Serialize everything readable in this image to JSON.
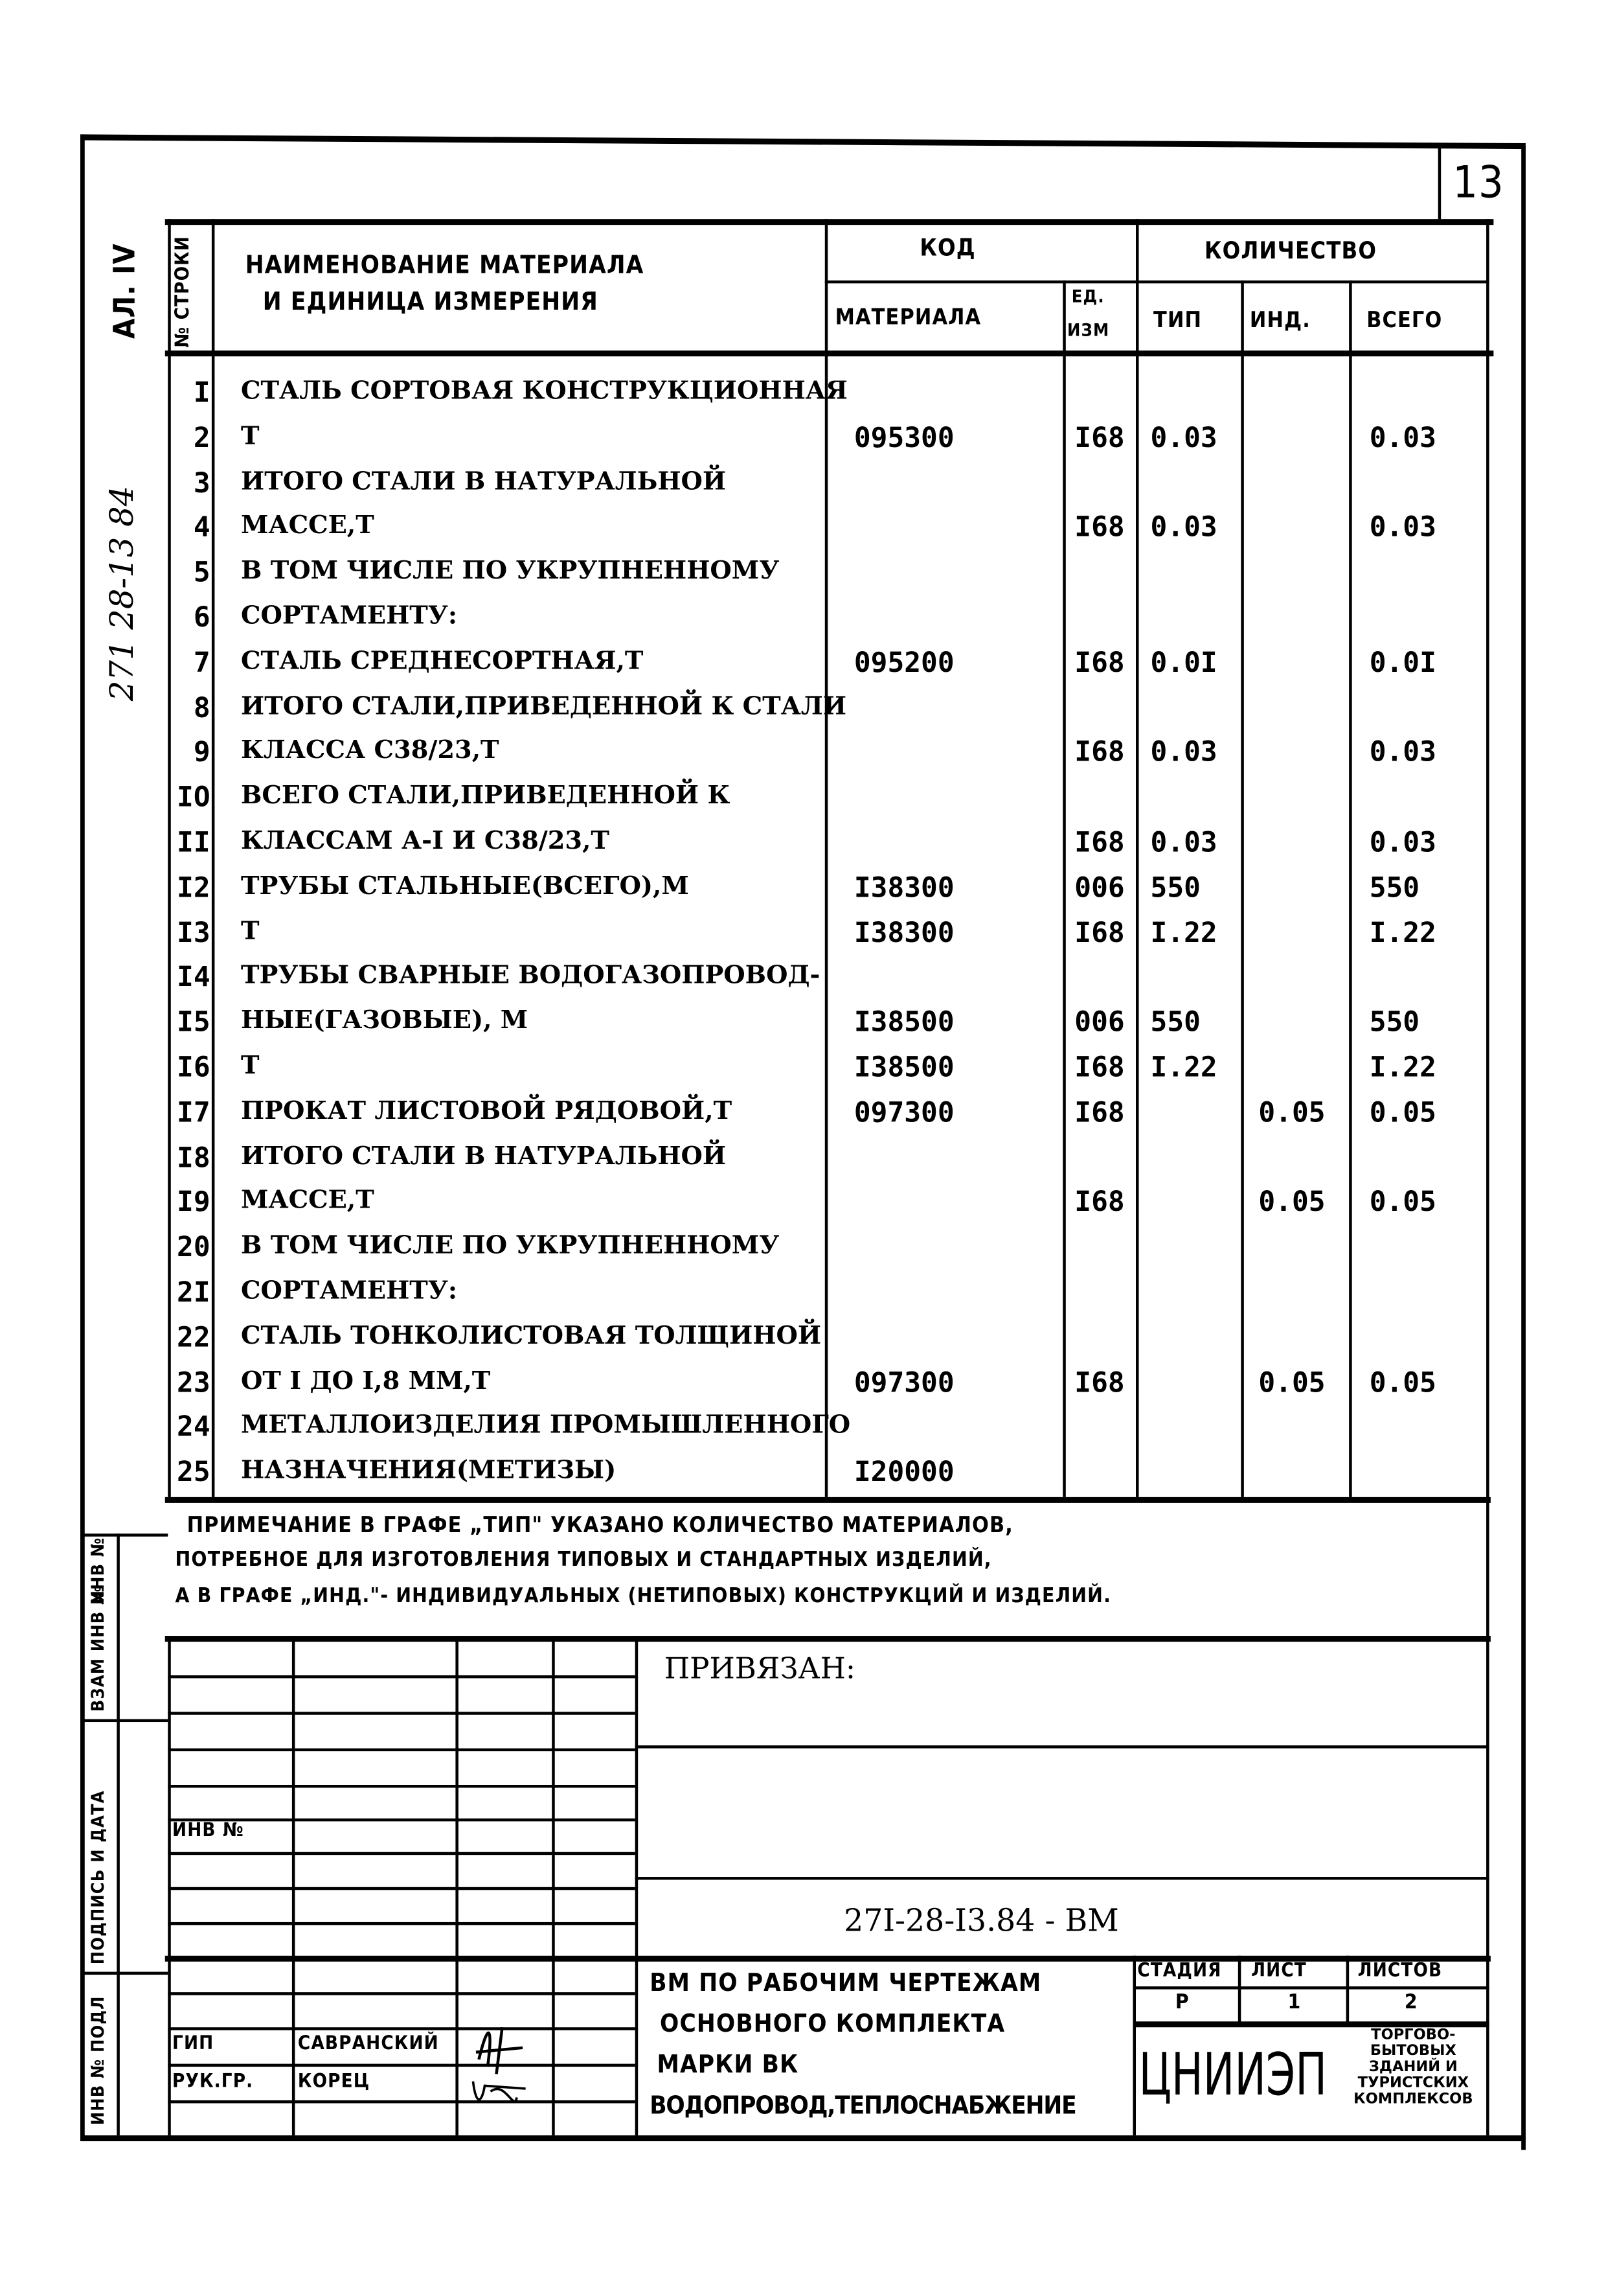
{
  "sheet_number": "13",
  "side": {
    "album": "АЛ. IV",
    "project_handwritten": "271 28-13 84",
    "labels": [
      "ИНВ № ПОДЛ",
      "ПОДПИСЬ И ДАТА",
      "ВЗАМ ИНВ №"
    ]
  },
  "header": {
    "row_no": "№ СТРОКИ",
    "name": "НАИМЕНОВАНИЕ МАТЕРИАЛА",
    "name2": "И ЕДИНИЦА ИЗМЕРЕНИЯ",
    "code": "КОД",
    "quantity": "КОЛИЧЕСТВО",
    "material": "МАТЕРИАЛА",
    "unit1": "ЕД.",
    "unit2": "ИЗМ",
    "typ": "ТИП",
    "ind": "ИНД.",
    "total": "ВСЕГО"
  },
  "rows": [
    {
      "n": "I",
      "name": "СТАЛЬ СОРТОВАЯ КОНСТРУКЦИОННАЯ",
      "code": "",
      "unit": "",
      "typ": "",
      "ind": "",
      "total": ""
    },
    {
      "n": "2",
      "name": "Т",
      "code": "095300",
      "unit": "I68",
      "typ": "0.03",
      "ind": "",
      "total": "0.03"
    },
    {
      "n": "3",
      "name": "ИТОГО СТАЛИ В НАТУРАЛЬНОЙ",
      "code": "",
      "unit": "",
      "typ": "",
      "ind": "",
      "total": ""
    },
    {
      "n": "4",
      "name": "МАССЕ,Т",
      "code": "",
      "unit": "I68",
      "typ": "0.03",
      "ind": "",
      "total": "0.03"
    },
    {
      "n": "5",
      "name": "В ТОМ ЧИСЛЕ ПО УКРУПНЕННОМУ",
      "code": "",
      "unit": "",
      "typ": "",
      "ind": "",
      "total": ""
    },
    {
      "n": "6",
      "name": "СОРТАМЕНТУ:",
      "code": "",
      "unit": "",
      "typ": "",
      "ind": "",
      "total": ""
    },
    {
      "n": "7",
      "name": "СТАЛЬ СРЕДНЕСОРТНАЯ,Т",
      "code": "095200",
      "unit": "I68",
      "typ": "0.0I",
      "ind": "",
      "total": "0.0I"
    },
    {
      "n": "8",
      "name": "ИТОГО СТАЛИ,ПРИВЕДЕННОЙ К СТАЛИ",
      "code": "",
      "unit": "",
      "typ": "",
      "ind": "",
      "total": ""
    },
    {
      "n": "9",
      "name": "КЛАССА С38/23,Т",
      "code": "",
      "unit": "I68",
      "typ": "0.03",
      "ind": "",
      "total": "0.03"
    },
    {
      "n": "IO",
      "name": "ВСЕГО СТАЛИ,ПРИВЕДЕННОЙ К",
      "code": "",
      "unit": "",
      "typ": "",
      "ind": "",
      "total": ""
    },
    {
      "n": "II",
      "name": "КЛАССАМ А-I И С38/23,Т",
      "code": "",
      "unit": "I68",
      "typ": "0.03",
      "ind": "",
      "total": "0.03"
    },
    {
      "n": "I2",
      "name": "ТРУБЫ СТАЛЬНЫЕ(ВСЕГО),М",
      "code": "I38300",
      "unit": "006",
      "typ": "550",
      "ind": "",
      "total": "550"
    },
    {
      "n": "I3",
      "name": "Т",
      "code": "I38300",
      "unit": "I68",
      "typ": "I.22",
      "ind": "",
      "total": "I.22"
    },
    {
      "n": "I4",
      "name": "ТРУБЫ СВАРНЫЕ ВОДОГАЗОПРОВОД-",
      "code": "",
      "unit": "",
      "typ": "",
      "ind": "",
      "total": ""
    },
    {
      "n": "I5",
      "name": "НЫЕ(ГАЗОВЫЕ), М",
      "code": "I38500",
      "unit": "006",
      "typ": "550",
      "ind": "",
      "total": "550"
    },
    {
      "n": "I6",
      "name": "Т",
      "code": "I38500",
      "unit": "I68",
      "typ": "I.22",
      "ind": "",
      "total": "I.22"
    },
    {
      "n": "I7",
      "name": "ПРОКАТ ЛИСТОВОЙ РЯДОВОЙ,Т",
      "code": "097300",
      "unit": "I68",
      "typ": "",
      "ind": "0.05",
      "total": "0.05"
    },
    {
      "n": "I8",
      "name": "ИТОГО СТАЛИ В НАТУРАЛЬНОЙ",
      "code": "",
      "unit": "",
      "typ": "",
      "ind": "",
      "total": ""
    },
    {
      "n": "I9",
      "name": "МАССЕ,Т",
      "code": "",
      "unit": "I68",
      "typ": "",
      "ind": "0.05",
      "total": "0.05"
    },
    {
      "n": "20",
      "name": "В ТОМ ЧИСЛЕ ПО УКРУПНЕННОМУ",
      "code": "",
      "unit": "",
      "typ": "",
      "ind": "",
      "total": ""
    },
    {
      "n": "2I",
      "name": "СОРТАМЕНТУ:",
      "code": "",
      "unit": "",
      "typ": "",
      "ind": "",
      "total": ""
    },
    {
      "n": "22",
      "name": "СТАЛЬ ТОНКОЛИСТОВАЯ ТОЛЩИНОЙ",
      "code": "",
      "unit": "",
      "typ": "",
      "ind": "",
      "total": ""
    },
    {
      "n": "23",
      "name": "ОТ I ДО I,8 ММ,Т",
      "code": "097300",
      "unit": "I68",
      "typ": "",
      "ind": "0.05",
      "total": "0.05"
    },
    {
      "n": "24",
      "name": "МЕТАЛЛОИЗДЕЛИЯ ПРОМЫШЛЕННОГО",
      "code": "",
      "unit": "",
      "typ": "",
      "ind": "",
      "total": ""
    },
    {
      "n": "25",
      "name": "НАЗНАЧЕНИЯ(МЕТИЗЫ)",
      "code": "I20000",
      "unit": "",
      "typ": "",
      "ind": "",
      "total": ""
    }
  ],
  "note": {
    "line1": "ПРИМЕЧАНИЕ В ГРАФЕ „ТИП\" УКАЗАНО КОЛИЧЕСТВО МАТЕРИАЛОВ,",
    "line2": "ПОТРЕБНОЕ ДЛЯ ИЗГОТОВЛЕНИЯ ТИПОВЫХ И СТАНДАРТНЫХ ИЗДЕЛИЙ,",
    "line3": "А В ГРАФЕ „ИНД.\"- ИНДИВИДУАЛЬНЫХ (НЕТИПОВЫХ) КОНСТРУКЦИЙ И ИЗДЕЛИЙ."
  },
  "title_block": {
    "bound": "ПРИВЯЗАН:",
    "inv_no": "ИНВ №",
    "doc_code": "27I-28-I3.84 - ВМ",
    "title": [
      "ВМ ПО РАБОЧИМ ЧЕРТЕЖАМ",
      "ОСНОВНОГО КОМПЛЕКТА",
      "МАРКИ ВК",
      "ВОДОПРОВОД,ТЕПЛОСНАБЖЕНИЕ"
    ],
    "people": [
      {
        "role": "ГИП",
        "name": "САВРАНСКИЙ"
      },
      {
        "role": "РУК.ГР.",
        "name": "КОРЕЦ"
      }
    ],
    "stage_label": "СТАДИЯ",
    "sheet_label": "ЛИСТ",
    "sheets_label": "ЛИСТОВ",
    "stage": "Р",
    "sheet": "1",
    "sheets": "2",
    "org": "ЦНИИЭП",
    "org_sub": [
      "ТОРГОВО-",
      "БЫТОВЫХ",
      "ЗДАНИЙ И",
      "ТУРИСТСКИХ",
      "КОМПЛЕКСОВ"
    ]
  }
}
